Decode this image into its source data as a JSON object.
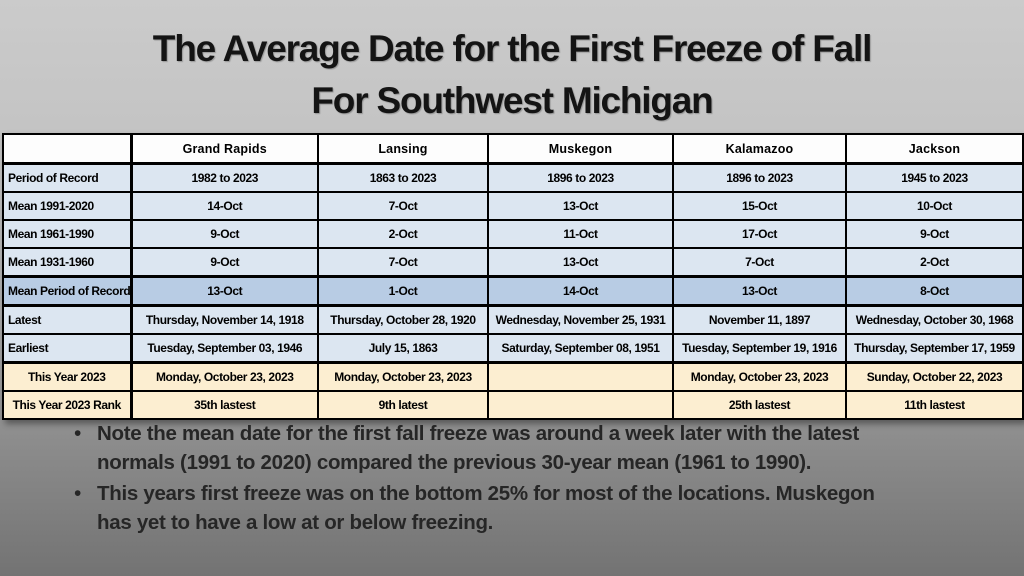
{
  "title": {
    "lines": [
      "The Average Date for the First Freeze of Fall",
      "For Southwest Michigan"
    ]
  },
  "table": {
    "columns": [
      "",
      "Grand Rapids",
      "Lansing",
      "Muskegon",
      "Kalamazoo",
      "Jackson"
    ],
    "rows": [
      {
        "label": "Period  of Record",
        "style": "blue",
        "cells": [
          "1982 to 2023",
          "1863 to 2023",
          "1896 to 2023",
          "1896 to 2023",
          "1945 to 2023"
        ]
      },
      {
        "label": "Mean 1991-2020",
        "style": "blue",
        "cells": [
          "14-Oct",
          "7-Oct",
          "13-Oct",
          "15-Oct",
          "10-Oct"
        ]
      },
      {
        "label": "Mean 1961-1990",
        "style": "blue",
        "cells": [
          "9-Oct",
          "2-Oct",
          "11-Oct",
          "17-Oct",
          "9-Oct"
        ]
      },
      {
        "label": "Mean 1931-1960",
        "style": "blue",
        "cells": [
          "9-Oct",
          "7-Oct",
          "13-Oct",
          "7-Oct",
          "2-Oct"
        ]
      },
      {
        "label": "Mean Period of Record",
        "style": "blue-dark",
        "cells": [
          "13-Oct",
          "1-Oct",
          "14-Oct",
          "13-Oct",
          "8-Oct"
        ]
      },
      {
        "label": "Latest",
        "style": "blue",
        "cells": [
          "Thursday, November 14, 1918",
          "Thursday, October 28, 1920",
          "Wednesday, November 25, 1931",
          "November 11, 1897",
          "Wednesday, October 30, 1968"
        ]
      },
      {
        "label": "Earliest",
        "style": "blue",
        "cells": [
          "Tuesday, September 03, 1946",
          "July 15, 1863",
          "Saturday, September 08, 1951",
          "Tuesday, September 19, 1916",
          "Thursday, September 17, 1959"
        ]
      },
      {
        "label": "This Year 2023",
        "style": "cream",
        "cells": [
          "Monday, October 23, 2023",
          "Monday, October 23, 2023",
          "",
          "Monday, October 23, 2023",
          "Sunday, October 22, 2023"
        ]
      },
      {
        "label": "This Year 2023 Rank",
        "style": "cream",
        "cells": [
          "35th lastest",
          "9th latest",
          "",
          "25th lastest",
          "11th lastest"
        ]
      }
    ]
  },
  "bullets": [
    {
      "marker": "•",
      "lines": [
        "Note the mean date for the first fall freeze was around a week later with the latest",
        "normals (1991 to 2020) compared the  previous 30-year mean (1961 to 1990)."
      ]
    },
    {
      "marker": "•",
      "lines": [
        "This years first freeze was on the bottom 25%  for most of the locations.  Muskegon",
        "has yet to have  a low at or below freezing."
      ]
    }
  ],
  "colors": {
    "background_top": "#cbcbcb",
    "background_bottom": "#737373",
    "row_light_blue": "#dce6f1",
    "row_medium_blue": "#b8cce4",
    "row_cream": "#fceed1",
    "table_border": "#000000",
    "title_text": "#141414",
    "bullet_text": "#262626"
  }
}
